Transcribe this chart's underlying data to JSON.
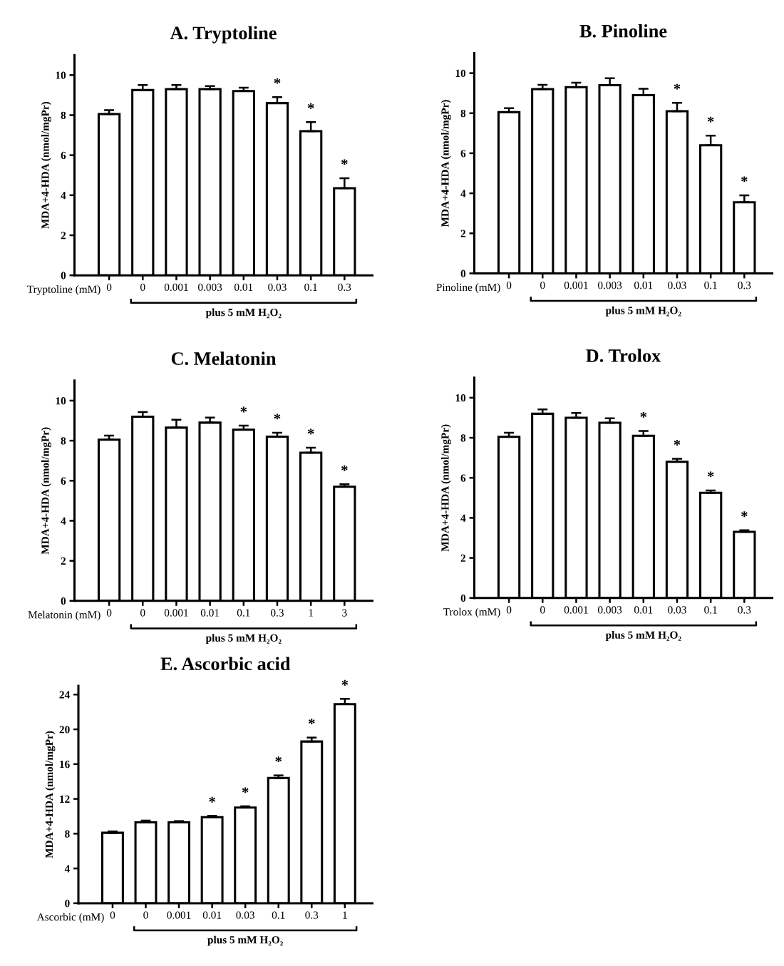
{
  "chart_data": [
    {
      "type": "bar",
      "title": "A. Tryptoline",
      "ylabel": "MDA+4-HDA (nmol/mgPr)",
      "xlabel": "plus 5 mM H₂O₂",
      "annotations": [
        "Tryptoline (mM)"
      ],
      "color": "#ffffff",
      "categories": [
        "0",
        "0",
        "0.001",
        "0.003",
        "0.01",
        "0.03",
        "0.1",
        "0.3"
      ],
      "values": [
        8.05,
        9.25,
        9.3,
        9.3,
        9.2,
        8.6,
        7.2,
        4.35
      ],
      "errors": [
        0.2,
        0.25,
        0.2,
        0.15,
        0.17,
        0.3,
        0.45,
        0.5
      ],
      "value_labels": [
        null,
        null,
        null,
        null,
        null,
        "*",
        "*",
        "*"
      ],
      "ylim": [
        0,
        11
      ],
      "yticks": [
        0,
        2,
        4,
        6,
        8,
        10
      ]
    },
    {
      "type": "bar",
      "title": "B. Pinoline",
      "ylabel": "MDA+4-HDA (nmol/mgPr)",
      "xlabel": "plus 5 mM H₂O₂",
      "annotations": [
        "Pinoline (mM)"
      ],
      "color": "#ffffff",
      "categories": [
        "0",
        "0",
        "0.001",
        "0.003",
        "0.01",
        "0.03",
        "0.1",
        "0.3"
      ],
      "values": [
        8.05,
        9.2,
        9.3,
        9.4,
        8.9,
        8.1,
        6.4,
        3.55
      ],
      "errors": [
        0.2,
        0.22,
        0.22,
        0.35,
        0.32,
        0.42,
        0.48,
        0.35
      ],
      "value_labels": [
        null,
        null,
        null,
        null,
        null,
        "*",
        "*",
        "*"
      ],
      "ylim": [
        0,
        11
      ],
      "yticks": [
        0,
        2,
        4,
        6,
        8,
        10
      ]
    },
    {
      "type": "bar",
      "title": "C. Melatonin",
      "ylabel": "MDA+4-HDA (nmol/mgPr)",
      "xlabel": "plus 5 mM H₂O₂",
      "annotations": [
        "Melatonin (mM)"
      ],
      "color": "#ffffff",
      "categories": [
        "0",
        "0",
        "0.001",
        "0.01",
        "0.1",
        "0.3",
        "1",
        "3"
      ],
      "values": [
        8.05,
        9.2,
        8.65,
        8.9,
        8.55,
        8.2,
        7.4,
        5.7
      ],
      "errors": [
        0.2,
        0.23,
        0.4,
        0.25,
        0.2,
        0.2,
        0.25,
        0.12
      ],
      "value_labels": [
        null,
        null,
        null,
        null,
        "*",
        "*",
        "*",
        "*"
      ],
      "ylim": [
        0,
        11
      ],
      "yticks": [
        0,
        2,
        4,
        6,
        8,
        10
      ]
    },
    {
      "type": "bar",
      "title": "D. Trolox",
      "ylabel": "MDA+4-HDA (nmol/mgPr)",
      "xlabel": "plus 5 mM H₂O₂",
      "annotations": [
        "Trolox (mM)"
      ],
      "color": "#ffffff",
      "categories": [
        "0",
        "0",
        "0.001",
        "0.003",
        "0.01",
        "0.03",
        "0.1",
        "0.3"
      ],
      "values": [
        8.05,
        9.2,
        9.0,
        8.75,
        8.1,
        6.8,
        5.25,
        3.3
      ],
      "errors": [
        0.2,
        0.22,
        0.24,
        0.22,
        0.24,
        0.15,
        0.12,
        0.08
      ],
      "value_labels": [
        null,
        null,
        null,
        null,
        "*",
        "*",
        "*",
        "*"
      ],
      "ylim": [
        0,
        11
      ],
      "yticks": [
        0,
        2,
        4,
        6,
        8,
        10
      ]
    },
    {
      "type": "bar",
      "title": "E. Ascorbic acid",
      "ylabel": "MDA+4-HDA (nmol/mgPr)",
      "xlabel": "plus 5 mM H₂O₂",
      "annotations": [
        "Ascorbic (mM)"
      ],
      "color": "#ffffff",
      "categories": [
        "0",
        "0",
        "0.001",
        "0.01",
        "0.03",
        "0.1",
        "0.3",
        "1"
      ],
      "values": [
        8.1,
        9.3,
        9.3,
        9.9,
        11.0,
        14.4,
        18.6,
        22.9
      ],
      "errors": [
        0.15,
        0.2,
        0.15,
        0.15,
        0.15,
        0.3,
        0.45,
        0.6
      ],
      "value_labels": [
        null,
        null,
        null,
        "*",
        "*",
        "*",
        "*",
        "*"
      ],
      "ylim": [
        0,
        25
      ],
      "yticks": [
        0,
        4,
        8,
        12,
        16,
        20,
        24
      ]
    }
  ]
}
